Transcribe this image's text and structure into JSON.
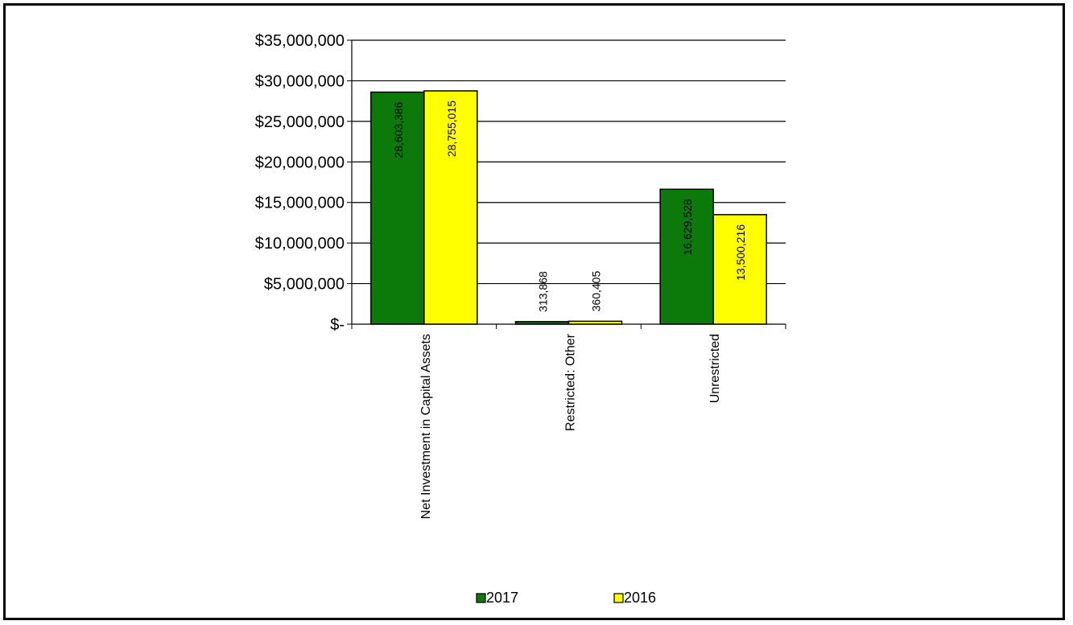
{
  "chart_data": {
    "type": "bar",
    "title": "",
    "xlabel": "",
    "ylabel": "",
    "categories": [
      "Net Investment in Capital Assets",
      "Restricted: Other",
      "Unrestricted"
    ],
    "series": [
      {
        "name": "2017",
        "color": "#0b7a0b",
        "values": [
          28603386,
          313868,
          16629528
        ],
        "labels": [
          "28,603,386",
          "313,868",
          "16,629,528"
        ]
      },
      {
        "name": "2016",
        "color": "#ffff00",
        "values": [
          28755015,
          360405,
          13500216
        ],
        "labels": [
          "28,755,015",
          "360,405",
          "13,500,216"
        ]
      }
    ],
    "y_tick_labels": [
      "$-",
      "$5,000,000",
      "$10,000,000",
      "$15,000,000",
      "$20,000,000",
      "$25,000,000",
      "$30,000,000",
      "$35,000,000"
    ],
    "ylim": [
      0,
      35000000
    ],
    "grid": true,
    "legend_position": "bottom"
  }
}
